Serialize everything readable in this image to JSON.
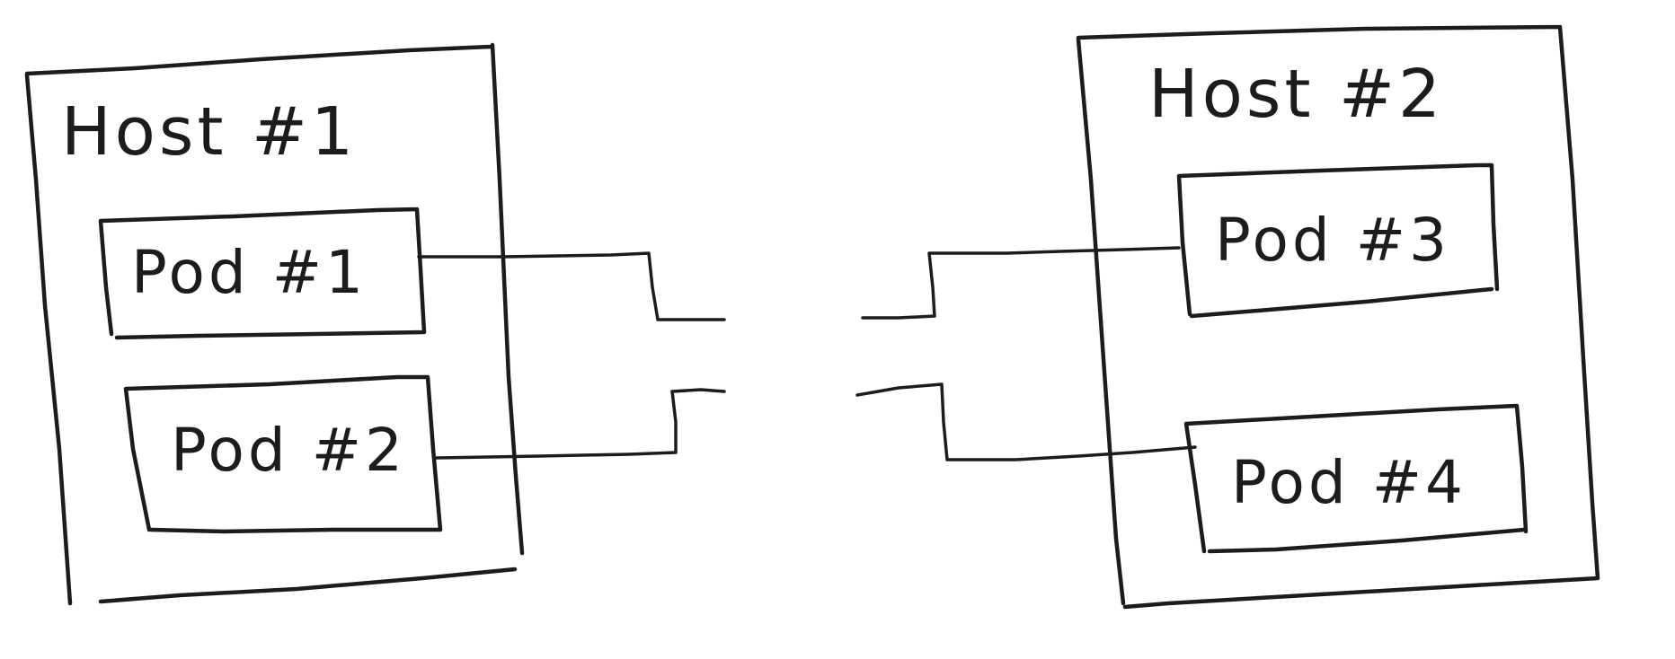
{
  "diagram": {
    "hosts": [
      {
        "id": "host-1",
        "label": "Host #1",
        "pods": [
          {
            "id": "pod-1",
            "label": "Pod #1"
          },
          {
            "id": "pod-2",
            "label": "Pod #2"
          }
        ]
      },
      {
        "id": "host-2",
        "label": "Host #2",
        "pods": [
          {
            "id": "pod-3",
            "label": "Pod #3"
          },
          {
            "id": "pod-4",
            "label": "Pod #4"
          }
        ]
      }
    ],
    "connections": [
      {
        "from": "pod-1",
        "to": "pod-3"
      },
      {
        "from": "pod-2",
        "to": "pod-4"
      }
    ]
  }
}
